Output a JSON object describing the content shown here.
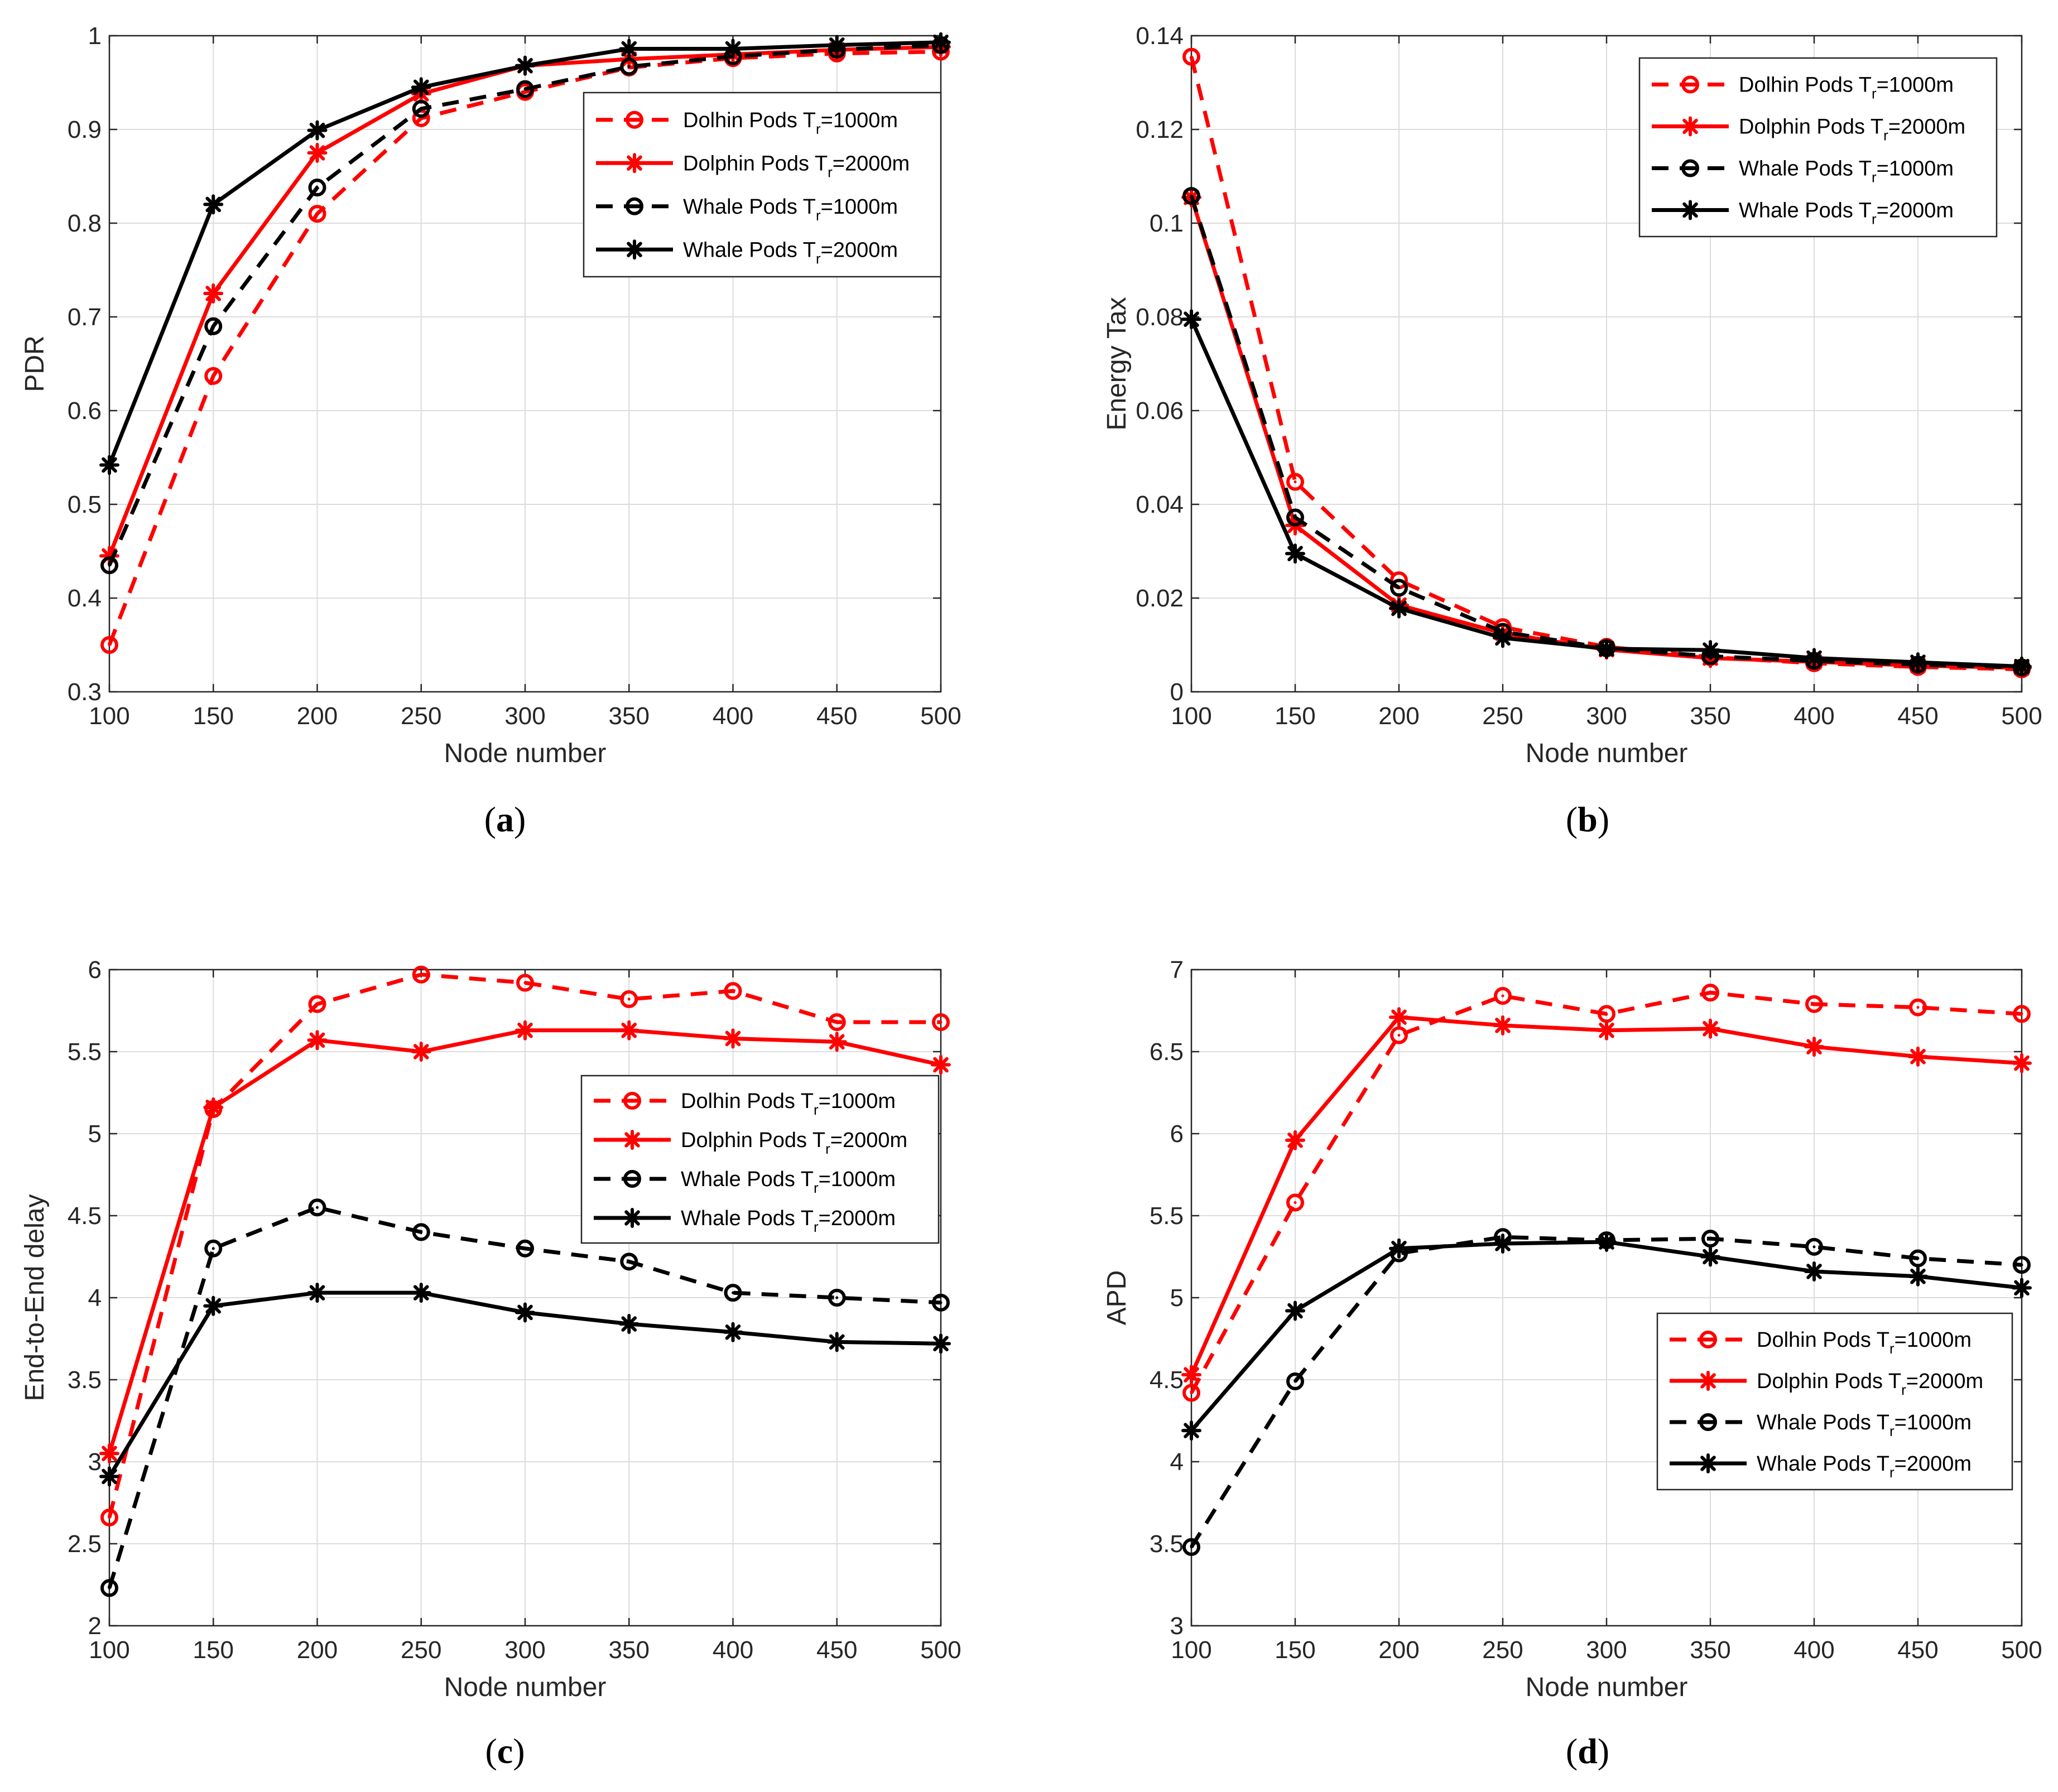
{
  "chart_data": [
    {
      "type": "line",
      "caption": "(a)",
      "caption_letter": "a",
      "xlabel": "Node number",
      "ylabel": "PDR",
      "x": [
        100,
        150,
        200,
        250,
        300,
        350,
        400,
        450,
        500
      ],
      "xlim": [
        100,
        500
      ],
      "ylim": [
        0.3,
        1
      ],
      "yticks": [
        0.3,
        0.4,
        0.5,
        0.6,
        0.7,
        0.8,
        0.9,
        1
      ],
      "ytick_labels": [
        "0.3",
        "0.4",
        "0.5",
        "0.6",
        "0.7",
        "0.8",
        "0.9",
        "1"
      ],
      "grid": true,
      "legend_position": "upper-right",
      "series": [
        {
          "name": "Dolhin Pods T=1000m",
          "legend_main": "Dolhin Pods T",
          "legend_sub": "r",
          "legend_tail": "=1000m",
          "color": "#ff0000",
          "dash": true,
          "marker": "circle",
          "values": [
            0.35,
            0.637,
            0.81,
            0.912,
            0.94,
            0.966,
            0.976,
            0.981,
            0.983
          ]
        },
        {
          "name": "Dolphin Pods T=2000m",
          "legend_main": "Dolphin Pods T",
          "legend_sub": "r",
          "legend_tail": "=2000m",
          "color": "#ff0000",
          "dash": false,
          "marker": "star",
          "values": [
            0.445,
            0.725,
            0.875,
            0.938,
            0.968,
            0.975,
            0.98,
            0.985,
            0.988
          ]
        },
        {
          "name": "Whale Pods T=1000m",
          "legend_main": "Whale Pods T",
          "legend_sub": "r",
          "legend_tail": "=1000m",
          "color": "#000000",
          "dash": true,
          "marker": "circle",
          "values": [
            0.435,
            0.69,
            0.838,
            0.922,
            0.943,
            0.967,
            0.978,
            0.985,
            0.99
          ]
        },
        {
          "name": "Whale Pods T=2000m",
          "legend_main": "Whale Pods T",
          "legend_sub": "r",
          "legend_tail": "=2000m",
          "color": "#000000",
          "dash": false,
          "marker": "star",
          "values": [
            0.542,
            0.82,
            0.899,
            0.945,
            0.968,
            0.986,
            0.986,
            0.99,
            0.993
          ]
        }
      ]
    },
    {
      "type": "line",
      "caption": "(b)",
      "caption_letter": "b",
      "xlabel": "Node number",
      "ylabel": "Energy Tax",
      "x": [
        100,
        150,
        200,
        250,
        300,
        350,
        400,
        450,
        500
      ],
      "xlim": [
        100,
        500
      ],
      "ylim": [
        0,
        0.14
      ],
      "yticks": [
        0,
        0.02,
        0.04,
        0.06,
        0.08,
        0.1,
        0.12,
        0.14
      ],
      "ytick_labels": [
        "0",
        "0.02",
        "0.04",
        "0.06",
        "0.08",
        "0.1",
        "0.12",
        "0.14"
      ],
      "grid": true,
      "legend_position": "upper-right",
      "series": [
        {
          "name": "Dolhin Pods T=1000m",
          "legend_main": "Dolhin Pods T",
          "legend_sub": "r",
          "legend_tail": "=1000m",
          "color": "#ff0000",
          "dash": true,
          "marker": "circle",
          "values": [
            0.1355,
            0.0448,
            0.0238,
            0.0138,
            0.0096,
            0.0074,
            0.0061,
            0.0053,
            0.0048
          ]
        },
        {
          "name": "Dolphin Pods T=2000m",
          "legend_main": "Dolphin Pods T",
          "legend_sub": "r",
          "legend_tail": "=2000m",
          "color": "#ff0000",
          "dash": false,
          "marker": "star",
          "values": [
            0.1055,
            0.0355,
            0.0185,
            0.0125,
            0.009,
            0.0072,
            0.0064,
            0.0056,
            0.0051
          ]
        },
        {
          "name": "Whale Pods T=1000m",
          "legend_main": "Whale Pods T",
          "legend_sub": "r",
          "legend_tail": "=1000m",
          "color": "#000000",
          "dash": true,
          "marker": "circle",
          "values": [
            0.1058,
            0.0372,
            0.0222,
            0.0128,
            0.0093,
            0.0076,
            0.0066,
            0.0058,
            0.0052
          ]
        },
        {
          "name": "Whale Pods T=2000m",
          "legend_main": "Whale Pods T",
          "legend_sub": "r",
          "legend_tail": "=2000m",
          "color": "#000000",
          "dash": false,
          "marker": "star",
          "values": [
            0.0795,
            0.0295,
            0.0178,
            0.0115,
            0.0092,
            0.0089,
            0.0072,
            0.0063,
            0.0054
          ]
        }
      ]
    },
    {
      "type": "line",
      "caption": "(c)",
      "caption_letter": "c",
      "xlabel": "Node number",
      "ylabel": "End-to-End delay",
      "x": [
        100,
        150,
        200,
        250,
        300,
        350,
        400,
        450,
        500
      ],
      "xlim": [
        100,
        500
      ],
      "ylim": [
        2,
        6
      ],
      "yticks": [
        2,
        2.5,
        3,
        3.5,
        4,
        4.5,
        5,
        5.5,
        6
      ],
      "ytick_labels": [
        "2",
        "2.5",
        "3",
        "3.5",
        "4",
        "4.5",
        "5",
        "5.5",
        "6"
      ],
      "grid": true,
      "legend_position": "middle-right",
      "series": [
        {
          "name": "Dolhin Pods T=1000m",
          "legend_main": "Dolhin Pods T",
          "legend_sub": "r",
          "legend_tail": "=1000m",
          "color": "#ff0000",
          "dash": true,
          "marker": "circle",
          "values": [
            2.66,
            5.15,
            5.79,
            5.97,
            5.92,
            5.82,
            5.87,
            5.68,
            5.68
          ]
        },
        {
          "name": "Dolphin Pods T=2000m",
          "legend_main": "Dolphin Pods T",
          "legend_sub": "r",
          "legend_tail": "=2000m",
          "color": "#ff0000",
          "dash": false,
          "marker": "star",
          "values": [
            3.05,
            5.16,
            5.57,
            5.5,
            5.63,
            5.63,
            5.58,
            5.56,
            5.42
          ]
        },
        {
          "name": "Whale Pods T=1000m",
          "legend_main": "Whale Pods T",
          "legend_sub": "r",
          "legend_tail": "=1000m",
          "color": "#000000",
          "dash": true,
          "marker": "circle",
          "values": [
            2.23,
            4.3,
            4.55,
            4.4,
            4.3,
            4.22,
            4.03,
            4.0,
            3.97
          ]
        },
        {
          "name": "Whale Pods T=2000m",
          "legend_main": "Whale Pods T",
          "legend_sub": "r",
          "legend_tail": "=2000m",
          "color": "#000000",
          "dash": false,
          "marker": "star",
          "values": [
            2.91,
            3.95,
            4.03,
            4.03,
            3.91,
            3.84,
            3.79,
            3.73,
            3.72
          ]
        }
      ]
    },
    {
      "type": "line",
      "caption": "(d)",
      "caption_letter": "d",
      "xlabel": "Node number",
      "ylabel": "APD",
      "x": [
        100,
        150,
        200,
        250,
        300,
        350,
        400,
        450,
        500
      ],
      "xlim": [
        100,
        500
      ],
      "ylim": [
        3,
        7
      ],
      "yticks": [
        3,
        3.5,
        4,
        4.5,
        5,
        5.5,
        6,
        6.5,
        7
      ],
      "ytick_labels": [
        "3",
        "3.5",
        "4",
        "4.5",
        "5",
        "5.5",
        "6",
        "6.5",
        "7"
      ],
      "grid": true,
      "legend_position": "lower-right",
      "series": [
        {
          "name": "Dolhin Pods T=1000m",
          "legend_main": "Dolhin Pods T",
          "legend_sub": "r",
          "legend_tail": "=1000m",
          "color": "#ff0000",
          "dash": true,
          "marker": "circle",
          "values": [
            4.42,
            5.58,
            6.6,
            6.84,
            6.73,
            6.86,
            6.79,
            6.77,
            6.73
          ]
        },
        {
          "name": "Dolphin Pods T=2000m",
          "legend_main": "Dolphin Pods T",
          "legend_sub": "r",
          "legend_tail": "=2000m",
          "color": "#ff0000",
          "dash": false,
          "marker": "star",
          "values": [
            4.53,
            5.96,
            6.71,
            6.66,
            6.63,
            6.64,
            6.53,
            6.47,
            6.43
          ]
        },
        {
          "name": "Whale Pods T=1000m",
          "legend_main": "Whale Pods T",
          "legend_sub": "r",
          "legend_tail": "=1000m",
          "color": "#000000",
          "dash": true,
          "marker": "circle",
          "values": [
            3.48,
            4.49,
            5.27,
            5.37,
            5.35,
            5.36,
            5.31,
            5.24,
            5.2
          ]
        },
        {
          "name": "Whale Pods T=2000m",
          "legend_main": "Whale Pods T",
          "legend_sub": "r",
          "legend_tail": "=2000m",
          "color": "#000000",
          "dash": false,
          "marker": "star",
          "values": [
            4.19,
            4.92,
            5.3,
            5.33,
            5.34,
            5.25,
            5.16,
            5.13,
            5.06
          ]
        }
      ]
    }
  ]
}
